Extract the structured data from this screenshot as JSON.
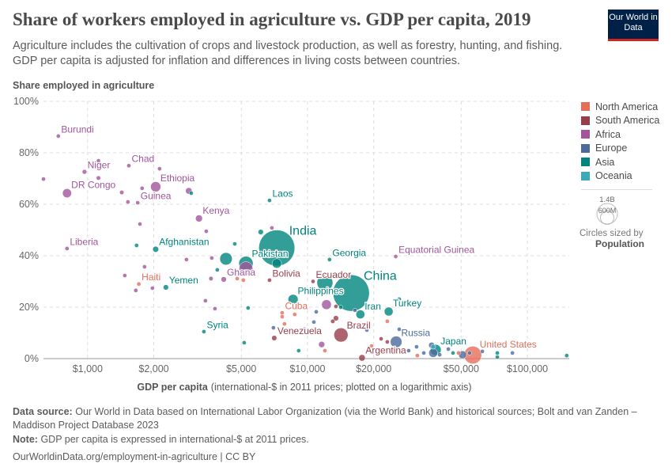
{
  "header": {
    "title": "Share of workers employed in agriculture vs. GDP per capita, 2019",
    "subtitle": "Agriculture includes the cultivation of crops and livestock production, as well as forestry, hunting, and fishing. GDP per capita is adjusted for inflation and differences in living costs between countries.",
    "logo": "Our World in Data"
  },
  "legend": {
    "items": [
      {
        "label": "North America",
        "color": "#E56E5A"
      },
      {
        "label": "South America",
        "color": "#9A3D4B"
      },
      {
        "label": "Africa",
        "color": "#A2559C"
      },
      {
        "label": "Europe",
        "color": "#4C6A9C"
      },
      {
        "label": "Asia",
        "color": "#00847E"
      },
      {
        "label": "Oceania",
        "color": "#38AABA"
      }
    ],
    "size_large": "1.4B",
    "size_small": "600M",
    "size_caption": "Circles sized by",
    "size_variable": "Population"
  },
  "chart_data": {
    "type": "scatter",
    "title": "Share of workers employed in agriculture vs. GDP per capita, 2019",
    "ylabel": "Share employed in agriculture",
    "xlabel_bold": "GDP per capita",
    "xlabel_rest": "(international-$ in 2011 prices; plotted on a logarithmic axis)",
    "x_scale": "log",
    "xlim": [
      630,
      155000
    ],
    "ylim": [
      0,
      100
    ],
    "x_ticks": [
      {
        "v": 1000,
        "label": "$1,000"
      },
      {
        "v": 2000,
        "label": "$2,000"
      },
      {
        "v": 5000,
        "label": "$5,000"
      },
      {
        "v": 10000,
        "label": "$10,000"
      },
      {
        "v": 20000,
        "label": "$20,000"
      },
      {
        "v": 50000,
        "label": "$50,000"
      },
      {
        "v": 100000,
        "label": "$100,000"
      }
    ],
    "y_ticks": [
      {
        "v": 0,
        "label": "0%"
      },
      {
        "v": 20,
        "label": "20%"
      },
      {
        "v": 40,
        "label": "40%"
      },
      {
        "v": 60,
        "label": "60%"
      },
      {
        "v": 80,
        "label": "80%"
      },
      {
        "v": 100,
        "label": "100%"
      }
    ],
    "grid": true,
    "legend_placement": "right",
    "point_fields": [
      "label",
      "region",
      "gdp_per_capita",
      "share_agriculture_pct",
      "population_millions"
    ],
    "points": [
      [
        "Burundi",
        "Africa",
        736,
        86.5,
        12
      ],
      [
        "Niger",
        "Africa",
        968,
        72.6,
        23
      ],
      [
        "Chad",
        "Africa",
        1540,
        75,
        16
      ],
      [
        "DR Congo",
        "Africa",
        806,
        64.3,
        87
      ],
      [
        "Ethiopia",
        "Africa",
        2040,
        66.8,
        112
      ],
      [
        "Guinea",
        "Africa",
        1690,
        60.6,
        13
      ],
      [
        "Kenya",
        "Africa",
        3210,
        54.5,
        52
      ],
      [
        "Laos",
        "Asia",
        6720,
        61.5,
        7
      ],
      [
        "India",
        "Asia",
        7250,
        43,
        1380
      ],
      [
        "Afghanistan",
        "Asia",
        2040,
        42.5,
        38
      ],
      [
        "Liberia",
        "Africa",
        806,
        42.8,
        5
      ],
      [
        "Pakistan",
        "Asia",
        5250,
        37,
        217
      ],
      [
        "Georgia",
        "Asia",
        12600,
        38.5,
        4
      ],
      [
        "Equatorial Guinea",
        "Africa",
        25200,
        39.7,
        1.4
      ],
      [
        "Haiti",
        "North America",
        1710,
        29,
        11
      ],
      [
        "Yemen",
        "Asia",
        2270,
        27.7,
        30
      ],
      [
        "Ghana",
        "Africa",
        4160,
        30.8,
        31
      ],
      [
        "Bolivia",
        "South America",
        6720,
        30.5,
        11.5
      ],
      [
        "Ecuador",
        "South America",
        10600,
        30,
        17
      ],
      [
        "China",
        "Asia",
        15800,
        25.5,
        1410
      ],
      [
        "Philippines",
        "Asia",
        8600,
        23,
        108
      ],
      [
        "Cuba",
        "North America",
        7670,
        17.8,
        11
      ],
      [
        "Iran",
        "Asia",
        17400,
        17.2,
        83
      ],
      [
        "Turkey",
        "Asia",
        23400,
        18.3,
        83
      ],
      [
        "Syria",
        "Asia",
        3380,
        10.5,
        17
      ],
      [
        "Venezuela",
        "South America",
        7060,
        8,
        29
      ],
      [
        "Brazil",
        "South America",
        14200,
        9.2,
        211
      ],
      [
        "Argentina",
        "South America",
        17700,
        0.3,
        45
      ],
      [
        "Russia",
        "Europe",
        25300,
        6.5,
        145
      ],
      [
        "Japan",
        "Asia",
        38300,
        3.4,
        126
      ],
      [
        "United States",
        "North America",
        56500,
        1.4,
        330
      ],
      [
        "",
        "Africa",
        5250,
        35,
        200
      ],
      [
        "",
        "Asia",
        4260,
        38.8,
        165
      ],
      [
        "",
        "Asia",
        12000,
        29.5,
        270
      ],
      [
        "",
        "Asia",
        7250,
        37,
        96
      ],
      [
        "",
        "Africa",
        12200,
        21,
        100
      ],
      [
        "",
        "Africa",
        630,
        69.8,
        15
      ],
      [
        "",
        "Africa",
        1120,
        76.9,
        8
      ],
      [
        "",
        "Africa",
        1120,
        70.2,
        20
      ],
      [
        "",
        "Africa",
        1430,
        64.6,
        20
      ],
      [
        "",
        "Africa",
        1770,
        66.2,
        10
      ],
      [
        "",
        "Africa",
        1525,
        60.9,
        10
      ],
      [
        "",
        "Africa",
        1730,
        52.3,
        8
      ],
      [
        "",
        "Africa",
        2125,
        73.8,
        10
      ],
      [
        "",
        "Africa",
        2885,
        65.2,
        45
      ],
      [
        "",
        "Asia",
        2960,
        64.3,
        10
      ],
      [
        "",
        "Africa",
        3465,
        49.5,
        8
      ],
      [
        "",
        "Asia",
        6130,
        49.2,
        30
      ],
      [
        "",
        "Africa",
        6890,
        50.8,
        10
      ],
      [
        "",
        "Asia",
        1670,
        44,
        8
      ],
      [
        "",
        "Asia",
        4670,
        44.6,
        5
      ],
      [
        "",
        "Africa",
        2815,
        38.5,
        12
      ],
      [
        "",
        "Africa",
        3670,
        39.1,
        5
      ],
      [
        "",
        "Asia",
        3890,
        34.5,
        5
      ],
      [
        "",
        "Africa",
        1476,
        32.3,
        8
      ],
      [
        "",
        "Africa",
        1815,
        35.7,
        8
      ],
      [
        "",
        "Africa",
        3640,
        31.1,
        20
      ],
      [
        "",
        "North America",
        4790,
        31.1,
        5
      ],
      [
        "",
        "North America",
        5110,
        30.5,
        5
      ],
      [
        "",
        "Africa",
        1657,
        26.5,
        10
      ],
      [
        "",
        "Africa",
        1972,
        27.4,
        10
      ],
      [
        "",
        "Africa",
        3435,
        22.5,
        5
      ],
      [
        "",
        "Africa",
        3795,
        19.4,
        5
      ],
      [
        "",
        "Asia",
        5370,
        19.7,
        5
      ],
      [
        "",
        "Asia",
        5155,
        6.2,
        5
      ],
      [
        "",
        "Asia",
        9120,
        3.1,
        5
      ],
      [
        "",
        "Africa",
        11600,
        5.5,
        40
      ],
      [
        "",
        "North America",
        12000,
        3.1,
        5
      ],
      [
        "",
        "Europe",
        7000,
        12,
        5
      ],
      [
        "",
        "North America",
        7670,
        16.3,
        5
      ],
      [
        "",
        "North America",
        8750,
        17.2,
        5
      ],
      [
        "",
        "Europe",
        9680,
        11.4,
        20
      ],
      [
        "",
        "Europe",
        10690,
        14.2,
        8
      ],
      [
        "",
        "Europe",
        10960,
        18.2,
        5
      ],
      [
        "",
        "North America",
        7860,
        13.5,
        5
      ],
      [
        "",
        "South America",
        13470,
        20.3,
        5
      ],
      [
        "",
        "South America",
        13030,
        14.5,
        20
      ],
      [
        "",
        "South America",
        13470,
        15.7,
        30
      ],
      [
        "",
        "Asia",
        14160,
        20,
        5
      ],
      [
        "",
        "Europe",
        16440,
        18.8,
        5
      ],
      [
        "",
        "Europe",
        18620,
        11.1,
        5
      ],
      [
        "",
        "North America",
        19560,
        4.9,
        5
      ],
      [
        "",
        "South America",
        21620,
        7.7,
        5
      ],
      [
        "",
        "South America",
        23070,
        6.5,
        5
      ],
      [
        "",
        "North America",
        23070,
        14.5,
        5
      ],
      [
        "",
        "Asia",
        26140,
        23.1,
        5
      ],
      [
        "",
        "Europe",
        26140,
        11.4,
        5
      ],
      [
        "",
        "Europe",
        21250,
        3.4,
        5
      ],
      [
        "",
        "Europe",
        28850,
        3.1,
        5
      ],
      [
        "",
        "Europe",
        31340,
        4.6,
        8
      ],
      [
        "",
        "Europe",
        33800,
        2.2,
        5
      ],
      [
        "",
        "Europe",
        36700,
        5.2,
        38
      ],
      [
        "",
        "Europe",
        39900,
        1.5,
        10
      ],
      [
        "",
        "Asia",
        45900,
        2.2,
        5
      ],
      [
        "",
        "North America",
        48600,
        2.2,
        5
      ],
      [
        "",
        "Europe",
        50700,
        1.5,
        67
      ],
      [
        "",
        "Europe",
        54600,
        2.2,
        5
      ],
      [
        "",
        "Europe",
        62400,
        2.8,
        5
      ],
      [
        "",
        "Asia",
        73000,
        2.2,
        5
      ],
      [
        "",
        "Asia",
        73000,
        0.6,
        5
      ],
      [
        "",
        "Europe",
        85500,
        2.2,
        5
      ],
      [
        "",
        "Asia",
        151000,
        1.2,
        3
      ],
      [
        "",
        "Oceania",
        37300,
        4.6,
        25
      ],
      [
        "",
        "North America",
        31600,
        1.2,
        5
      ],
      [
        "",
        "Europe",
        37300,
        2.2,
        83
      ],
      [
        "",
        "Europe",
        43700,
        3.7,
        5
      ]
    ]
  },
  "footer": {
    "source_label": "Data source:",
    "source_text": "Our World in Data based on International Labor Organization (via the World Bank) and historical sources; Bolt and van Zanden – Maddison Project Database 2023",
    "note_label": "Note:",
    "note_text": "GDP per capita is expressed in international-$ at 2011 prices.",
    "url": "OurWorldinData.org/employment-in-agriculture | CC BY"
  }
}
